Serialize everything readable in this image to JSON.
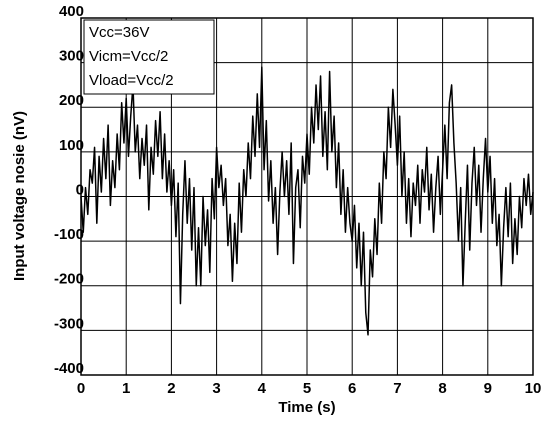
{
  "chart_data": {
    "type": "line",
    "xlabel": "Time (s)",
    "ylabel": "Input voltage nosie (nV)",
    "annotations": [
      "Vcc=36V",
      "Vicm=Vcc/2",
      "Vload=Vcc/2"
    ],
    "color": "#000000",
    "grid": true,
    "xlim": [
      0,
      10
    ],
    "xticks": [
      0,
      1,
      2,
      3,
      4,
      5,
      6,
      7,
      8,
      9,
      10
    ],
    "ylim": [
      -400,
      400
    ],
    "yticks": [
      -400,
      -300,
      -200,
      -100,
      0,
      100,
      200,
      300,
      400
    ],
    "x": [
      0,
      0.05,
      0.1,
      0.15,
      0.2,
      0.25,
      0.3,
      0.35,
      0.4,
      0.45,
      0.5,
      0.55,
      0.6,
      0.65,
      0.7,
      0.75,
      0.8,
      0.85,
      0.9,
      0.95,
      1,
      1.05,
      1.1,
      1.15,
      1.2,
      1.25,
      1.3,
      1.35,
      1.4,
      1.45,
      1.5,
      1.55,
      1.6,
      1.65,
      1.7,
      1.75,
      1.8,
      1.85,
      1.9,
      1.95,
      2,
      2.05,
      2.1,
      2.15,
      2.2,
      2.25,
      2.3,
      2.35,
      2.4,
      2.45,
      2.5,
      2.55,
      2.6,
      2.65,
      2.7,
      2.75,
      2.8,
      2.85,
      2.9,
      2.95,
      3,
      3.05,
      3.1,
      3.15,
      3.2,
      3.25,
      3.3,
      3.35,
      3.4,
      3.45,
      3.5,
      3.55,
      3.6,
      3.65,
      3.7,
      3.75,
      3.8,
      3.85,
      3.9,
      3.95,
      4,
      4.05,
      4.1,
      4.15,
      4.2,
      4.25,
      4.3,
      4.35,
      4.4,
      4.45,
      4.5,
      4.55,
      4.6,
      4.65,
      4.7,
      4.75,
      4.8,
      4.85,
      4.9,
      4.95,
      5,
      5.05,
      5.1,
      5.15,
      5.2,
      5.25,
      5.3,
      5.35,
      5.4,
      5.45,
      5.5,
      5.55,
      5.6,
      5.65,
      5.7,
      5.75,
      5.8,
      5.85,
      5.9,
      5.95,
      6,
      6.05,
      6.1,
      6.15,
      6.2,
      6.25,
      6.3,
      6.35,
      6.4,
      6.45,
      6.5,
      6.55,
      6.6,
      6.65,
      6.7,
      6.75,
      6.8,
      6.85,
      6.9,
      6.95,
      7,
      7.05,
      7.1,
      7.15,
      7.2,
      7.25,
      7.3,
      7.35,
      7.4,
      7.45,
      7.5,
      7.55,
      7.6,
      7.65,
      7.7,
      7.75,
      7.8,
      7.85,
      7.9,
      7.95,
      8,
      8.05,
      8.1,
      8.15,
      8.2,
      8.25,
      8.3,
      8.35,
      8.4,
      8.45,
      8.5,
      8.55,
      8.6,
      8.65,
      8.7,
      8.75,
      8.8,
      8.85,
      8.9,
      8.95,
      9,
      9.05,
      9.1,
      9.15,
      9.2,
      9.25,
      9.3,
      9.35,
      9.4,
      9.45,
      9.5,
      9.55,
      9.6,
      9.65,
      9.7,
      9.75,
      9.8,
      9.85,
      9.9,
      9.95,
      10
    ],
    "values": [
      0,
      -80,
      20,
      -40,
      60,
      30,
      110,
      -60,
      90,
      10,
      130,
      40,
      160,
      -20,
      80,
      20,
      140,
      60,
      210,
      120,
      220,
      90,
      180,
      250,
      100,
      160,
      40,
      130,
      70,
      160,
      -30,
      110,
      50,
      170,
      90,
      190,
      40,
      140,
      10,
      80,
      -20,
      60,
      -90,
      30,
      -240,
      -40,
      80,
      -60,
      40,
      -120,
      20,
      -200,
      -70,
      -200,
      0,
      -110,
      -30,
      -170,
      40,
      -50,
      110,
      20,
      70,
      -20,
      40,
      -110,
      -40,
      -190,
      -60,
      -150,
      30,
      -80,
      60,
      0,
      120,
      40,
      180,
      90,
      230,
      110,
      290,
      60,
      170,
      -10,
      80,
      -60,
      20,
      -130,
      10,
      100,
      0,
      80,
      -40,
      120,
      -150,
      20,
      60,
      -70,
      90,
      30,
      140,
      50,
      200,
      120,
      250,
      150,
      270,
      90,
      190,
      60,
      280,
      100,
      180,
      20,
      120,
      -40,
      60,
      -80,
      20,
      -60,
      -100,
      -20,
      -160,
      -60,
      -200,
      -80,
      -260,
      -310,
      -120,
      -180,
      -50,
      -130,
      30,
      -60,
      100,
      40,
      200,
      110,
      240,
      160,
      70,
      180,
      0,
      100,
      -60,
      40,
      -90,
      30,
      -20,
      70,
      -60,
      60,
      10,
      110,
      -30,
      50,
      -80,
      20,
      90,
      -40,
      60,
      160,
      40,
      210,
      250,
      120,
      30,
      -100,
      20,
      -200,
      -60,
      70,
      -120,
      30,
      110,
      -20,
      70,
      -80,
      40,
      130,
      10,
      90,
      -60,
      40,
      -110,
      -40,
      -200,
      -70,
      20,
      -90,
      30,
      -150,
      -50,
      -130,
      0,
      -70,
      40,
      -20,
      50,
      -40,
      10
    ]
  }
}
